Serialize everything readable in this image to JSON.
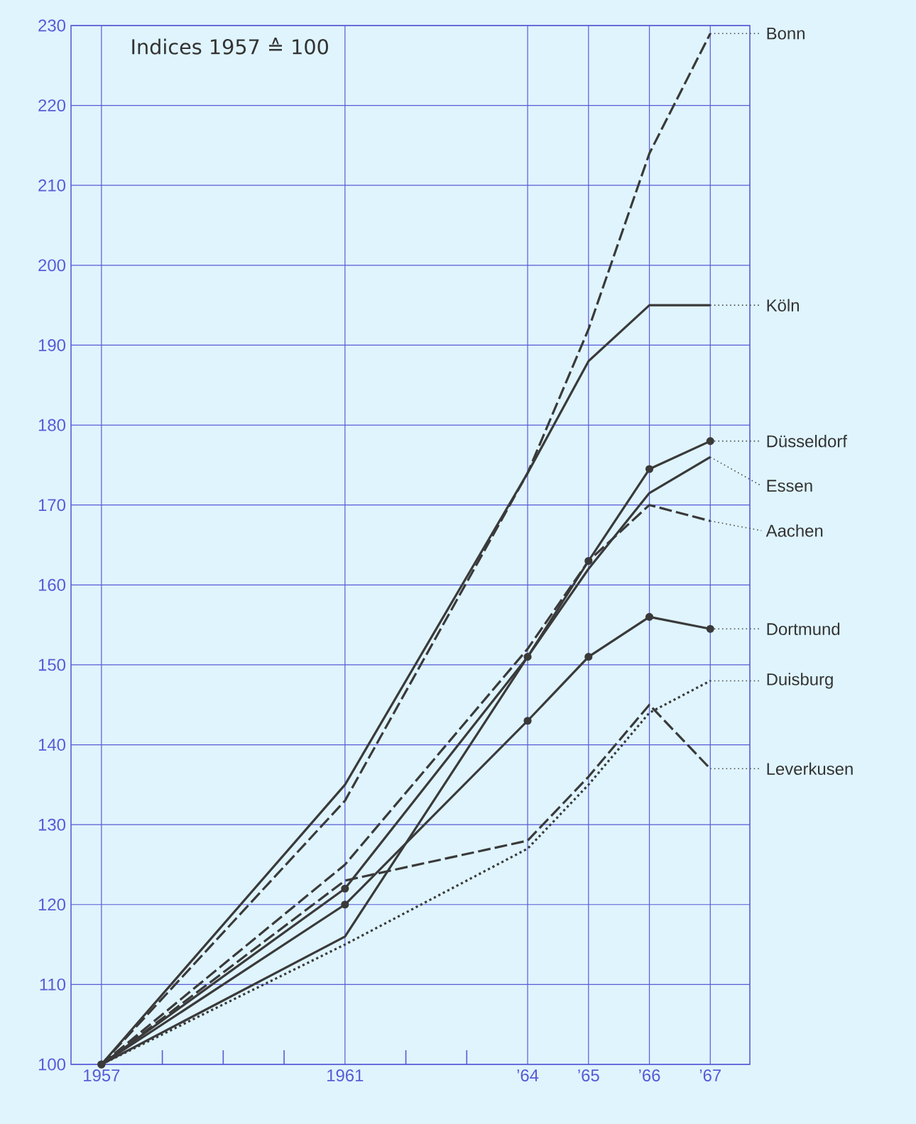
{
  "chart_data": {
    "type": "line",
    "title": "Indices  1957 ≙ 100",
    "x": [
      1957,
      1961,
      1964,
      1965,
      1966,
      1967
    ],
    "xlim": [
      1956.5,
      1967.65
    ],
    "xticks": [
      1957,
      {
        "value": 1958,
        "label": null
      },
      {
        "value": 1959,
        "label": null
      },
      {
        "value": 1960,
        "label": null
      },
      1961,
      {
        "value": 1962,
        "label": null
      },
      {
        "value": 1963,
        "label": null
      },
      {
        "value": 1964,
        "label": "’64"
      },
      {
        "value": 1965,
        "label": "’65"
      },
      {
        "value": 1966,
        "label": "’66"
      },
      {
        "value": 1967,
        "label": "’67"
      }
    ],
    "ylim": [
      100,
      230
    ],
    "yticks": [
      100,
      110,
      120,
      130,
      140,
      150,
      160,
      170,
      180,
      190,
      200,
      210,
      220,
      230
    ],
    "grid": true,
    "series": [
      {
        "name": "Bonn",
        "color": "#3a3a3a",
        "line_style": "dashed",
        "marker": "none",
        "values": [
          100,
          133,
          174,
          192,
          214,
          229
        ]
      },
      {
        "name": "Köln",
        "color": "#3a3a3a",
        "line_style": "solid",
        "marker": "none",
        "values": [
          100,
          135,
          174,
          188,
          195,
          195
        ]
      },
      {
        "name": "Düsseldorf",
        "color": "#3a3a3a",
        "line_style": "solid",
        "marker": "circle",
        "values": [
          100,
          122,
          151,
          163,
          174.5,
          178
        ]
      },
      {
        "name": "Essen",
        "color": "#3a3a3a",
        "line_style": "solid",
        "marker": "none",
        "values": [
          100,
          116,
          151,
          162,
          171.5,
          176
        ]
      },
      {
        "name": "Aachen",
        "color": "#3a3a3a",
        "line_style": "dashed",
        "marker": "none",
        "values": [
          100,
          125,
          152,
          163,
          170,
          168
        ]
      },
      {
        "name": "Dortmund",
        "color": "#3a3a3a",
        "line_style": "solid",
        "marker": "circle",
        "values": [
          100,
          120,
          143,
          151,
          156,
          154.5
        ]
      },
      {
        "name": "Duisburg",
        "color": "#3a3a3a",
        "line_style": "dotted",
        "marker": "none",
        "values": [
          100,
          115,
          127,
          135,
          144,
          148
        ]
      },
      {
        "name": "Leverkusen",
        "color": "#3a3a3a",
        "line_style": "dashed",
        "marker": "none",
        "values": [
          100,
          123,
          128,
          136,
          145,
          137
        ]
      }
    ]
  }
}
